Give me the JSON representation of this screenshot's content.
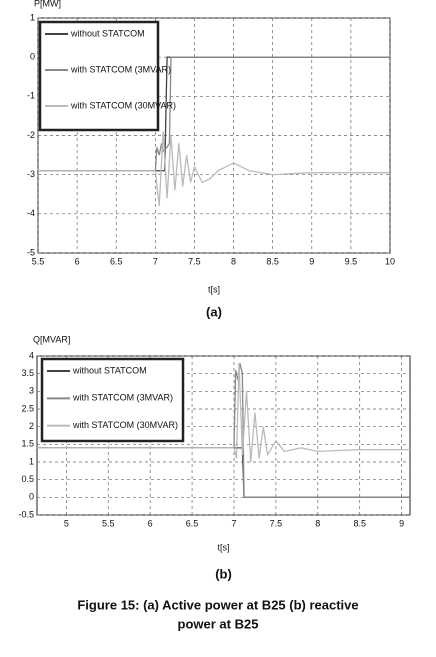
{
  "chart_data": [
    {
      "type": "line",
      "y_label": "P[MW]",
      "x_label": "t[s]",
      "subcaption": "(a)",
      "xlim": [
        5.5,
        10
      ],
      "xticks": [
        5.5,
        6,
        6.5,
        7,
        7.5,
        8,
        8.5,
        9,
        9.5,
        10
      ],
      "ylim": [
        -5,
        1
      ],
      "yticks": [
        -5,
        -4,
        -3,
        -2,
        -1,
        0,
        1
      ],
      "grid": true,
      "series": [
        {
          "name": "without STATCOM",
          "color": "#444444",
          "x": [
            5.5,
            7.12,
            7.15,
            10
          ],
          "values": [
            -2.9,
            -2.9,
            0,
            0
          ]
        },
        {
          "name": "with STATCOM (3MVAR)",
          "color": "#888888",
          "x": [
            5.5,
            7.0,
            7.02,
            7.05,
            7.08,
            7.1,
            7.15,
            7.18,
            7.2,
            10
          ],
          "values": [
            -2.9,
            -2.9,
            -2.3,
            -2.5,
            -2.2,
            -2.4,
            -2.3,
            -2.2,
            0,
            0
          ]
        },
        {
          "name": "with STATCOM (30MVAR)",
          "color": "#bbbbbb",
          "x": [
            5.5,
            7.0,
            7.05,
            7.1,
            7.15,
            7.2,
            7.25,
            7.3,
            7.35,
            7.4,
            7.45,
            7.5,
            7.6,
            7.7,
            7.8,
            8.0,
            8.2,
            8.5,
            9,
            10
          ],
          "values": [
            -2.9,
            -2.9,
            -3.8,
            -1.9,
            -3.6,
            -2.0,
            -3.4,
            -2.2,
            -3.3,
            -2.5,
            -3.2,
            -2.8,
            -3.2,
            -3.1,
            -2.9,
            -2.7,
            -2.9,
            -3.0,
            -2.95,
            -2.95
          ]
        }
      ]
    },
    {
      "type": "line",
      "y_label": "Q[MVAR]",
      "x_label": "t[s]",
      "subcaption": "(b)",
      "xlim": [
        4.65,
        9.1
      ],
      "xticks": [
        5,
        5.5,
        6,
        6.5,
        7,
        7.5,
        8,
        8.5,
        9
      ],
      "ylim": [
        -0.5,
        4
      ],
      "yticks": [
        -0.5,
        0,
        0.5,
        1,
        1.5,
        2,
        2.5,
        3,
        3.5,
        4
      ],
      "grid": true,
      "series": [
        {
          "name": "without STATCOM",
          "color": "#444444",
          "x": [
            4.65,
            7.1,
            7.12,
            9.1
          ],
          "values": [
            1.4,
            1.4,
            0,
            0
          ]
        },
        {
          "name": "with STATCOM (3MVAR)",
          "color": "#888888",
          "x": [
            4.65,
            7.0,
            7.02,
            7.05,
            7.07,
            7.1,
            7.12,
            9.1
          ],
          "values": [
            1.4,
            1.4,
            3.6,
            3.3,
            3.8,
            3.5,
            0,
            0
          ]
        },
        {
          "name": "with STATCOM (30MVAR)",
          "color": "#bbbbbb",
          "x": [
            4.65,
            7.0,
            7.03,
            7.06,
            7.1,
            7.15,
            7.2,
            7.25,
            7.3,
            7.35,
            7.4,
            7.5,
            7.6,
            7.8,
            8,
            8.5,
            9.1
          ],
          "values": [
            1.4,
            1.4,
            1.1,
            3.8,
            1.2,
            3.0,
            1.0,
            2.4,
            1.1,
            2.0,
            1.2,
            1.6,
            1.3,
            1.4,
            1.3,
            1.35,
            1.35
          ]
        }
      ]
    }
  ],
  "caption": [
    "Figure 15: (a) Active power at B25 (b) reactive",
    "power at B25"
  ]
}
